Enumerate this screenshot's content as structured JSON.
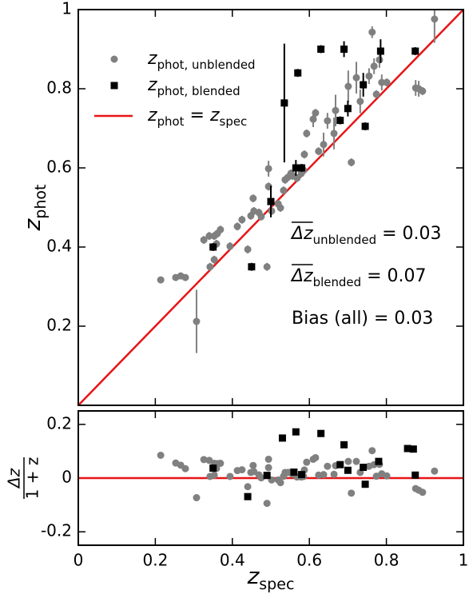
{
  "chart_data": [
    {
      "type": "scatter",
      "xlim": [
        0,
        1
      ],
      "ylim": [
        0,
        1
      ],
      "xticks": [
        0,
        0.2,
        0.4,
        0.6,
        0.8,
        1
      ],
      "yticks": [
        0.2,
        0.4,
        0.6,
        0.8,
        1
      ],
      "ylabel": [
        {
          "text": "z"
        },
        {
          "sub": "phot"
        }
      ],
      "legend_position": "upper left",
      "series": [
        {
          "name": [
            {
              "text": "z"
            },
            {
              "sub": "phot, unblended"
            }
          ],
          "color": "#808080",
          "marker": "circle",
          "x": [
            0.214,
            0.253,
            0.266,
            0.278,
            0.307,
            0.326,
            0.34,
            0.353,
            0.342,
            0.353,
            0.361,
            0.369,
            0.359,
            0.394,
            0.413,
            0.425,
            0.44,
            0.448,
            0.454,
            0.456,
            0.469,
            0.475,
            0.494,
            0.494,
            0.49,
            0.502,
            0.519,
            0.525,
            0.533,
            0.537,
            0.544,
            0.552,
            0.556,
            0.568,
            0.579,
            0.585,
            0.587,
            0.593,
            0.61,
            0.616,
            0.624,
            0.637,
            0.647,
            0.664,
            0.668,
            0.701,
            0.709,
            0.722,
            0.732,
            0.755,
            0.763,
            0.768,
            0.774,
            0.782,
            0.788,
            0.801,
            0.876,
            0.884,
            0.894,
            0.925
          ],
          "values": [
            0.317,
            0.323,
            0.327,
            0.323,
            0.212,
            0.418,
            0.428,
            0.428,
            0.35,
            0.368,
            0.434,
            0.444,
            0.408,
            0.402,
            0.452,
            0.469,
            0.394,
            0.479,
            0.523,
            0.491,
            0.487,
            0.477,
            0.598,
            0.553,
            0.35,
            0.491,
            0.509,
            0.499,
            0.543,
            0.57,
            0.576,
            0.586,
            0.58,
            0.574,
            0.586,
            0.594,
            0.634,
            0.687,
            0.723,
            0.739,
            0.642,
            0.659,
            0.719,
            0.687,
            0.745,
            0.806,
            0.614,
            0.828,
            0.768,
            0.832,
            0.943,
            0.857,
            0.786,
            0.873,
            0.816,
            0.816,
            0.802,
            0.8,
            0.794,
            0.976
          ],
          "yerr": [
            0.005,
            0.005,
            0.005,
            0.005,
            0.08,
            0.01,
            0.01,
            0.01,
            0.01,
            0.01,
            0.01,
            0.01,
            0.01,
            0.01,
            0.01,
            0.01,
            0.01,
            0.01,
            0.01,
            0.01,
            0.01,
            0.01,
            0.02,
            0.01,
            0.01,
            0.01,
            0.01,
            0.01,
            0.01,
            0.01,
            0.01,
            0.01,
            0.01,
            0.01,
            0.01,
            0.01,
            0.01,
            0.01,
            0.02,
            0.01,
            0.01,
            0.03,
            0.02,
            0.04,
            0.04,
            0.04,
            0.01,
            0.04,
            0.03,
            0.02,
            0.015,
            0.02,
            0.01,
            0.02,
            0.02,
            0.01,
            0.02,
            0.02,
            0.01,
            0.06
          ]
        },
        {
          "name": [
            {
              "text": "z"
            },
            {
              "sub": "phot, blended"
            }
          ],
          "color": "#000000",
          "marker": "square",
          "x": [
            0.35,
            0.45,
            0.5,
            0.535,
            0.57,
            0.565,
            0.58,
            0.63,
            0.68,
            0.69,
            0.7,
            0.74,
            0.745,
            0.785,
            0.875
          ],
          "values": [
            0.4,
            0.35,
            0.515,
            0.764,
            0.84,
            0.6,
            0.6,
            0.9,
            0.72,
            0.9,
            0.75,
            0.81,
            0.705,
            0.895,
            0.895
          ],
          "yerr": [
            0.01,
            0.01,
            0.04,
            0.15,
            0.01,
            0.02,
            0.01,
            0.01,
            0.01,
            0.02,
            0.02,
            0.03,
            0.01,
            0.03,
            0.01
          ]
        }
      ],
      "reference_line": {
        "name": [
          {
            "text": "z"
          },
          {
            "sub": "phot"
          },
          {
            "text": " = "
          },
          {
            "text": "z"
          },
          {
            "sub": "spec"
          }
        ],
        "color": "#e81416",
        "x": [
          0,
          1
        ],
        "values": [
          0,
          1
        ]
      },
      "annotations": [
        [
          {
            "text": "Δz"
          },
          {
            "sub": "unblended"
          },
          {
            "text": " = 0.03"
          }
        ],
        [
          {
            "text": "Δz"
          },
          {
            "sub": "blended"
          },
          {
            "text": " = 0.07"
          }
        ],
        [
          {
            "text": "Bias (all) = 0.03"
          }
        ]
      ]
    },
    {
      "type": "scatter",
      "xlim": [
        0,
        1
      ],
      "ylim": [
        -0.25,
        0.25
      ],
      "xticks": [
        0,
        0.2,
        0.4,
        0.6,
        0.8,
        1
      ],
      "yticks": [
        -0.2,
        0,
        0.2
      ],
      "xlabel": [
        {
          "text": "z"
        },
        {
          "sub": "spec"
        }
      ],
      "ylabel": {
        "numerator": "Δz",
        "denominator": "1 + z"
      },
      "series": [
        {
          "color": "#808080",
          "marker": "circle",
          "x": [
            0.214,
            0.253,
            0.266,
            0.278,
            0.307,
            0.326,
            0.34,
            0.353,
            0.342,
            0.353,
            0.361,
            0.369,
            0.359,
            0.394,
            0.413,
            0.425,
            0.44,
            0.448,
            0.454,
            0.456,
            0.469,
            0.475,
            0.494,
            0.494,
            0.49,
            0.502,
            0.519,
            0.525,
            0.533,
            0.537,
            0.544,
            0.552,
            0.556,
            0.568,
            0.579,
            0.585,
            0.587,
            0.593,
            0.61,
            0.616,
            0.624,
            0.637,
            0.647,
            0.664,
            0.668,
            0.701,
            0.709,
            0.722,
            0.732,
            0.755,
            0.763,
            0.768,
            0.774,
            0.782,
            0.788,
            0.801,
            0.876,
            0.884,
            0.894,
            0.925
          ],
          "values": [
            0.085,
            0.056,
            0.048,
            0.035,
            -0.073,
            0.069,
            0.066,
            0.055,
            0.006,
            0.011,
            0.054,
            0.055,
            0.036,
            0.006,
            0.028,
            0.031,
            -0.032,
            0.021,
            0.047,
            0.024,
            0.012,
            0.001,
            0.07,
            0.039,
            -0.094,
            -0.007,
            -0.007,
            -0.017,
            0.007,
            0.021,
            0.021,
            0.022,
            0.015,
            0.004,
            0.004,
            0.006,
            0.03,
            0.059,
            0.07,
            0.076,
            0.011,
            0.013,
            0.044,
            0.014,
            0.046,
            0.062,
            -0.056,
            0.062,
            0.021,
            0.044,
            0.102,
            0.05,
            0.007,
            0.051,
            0.016,
            0.008,
            -0.039,
            -0.045,
            -0.053,
            0.026
          ]
        },
        {
          "color": "#000000",
          "marker": "square",
          "x": [
            0.35,
            0.44,
            0.49,
            0.53,
            0.565,
            0.56,
            0.58,
            0.63,
            0.68,
            0.69,
            0.7,
            0.74,
            0.745,
            0.78,
            0.855,
            0.87,
            0.875
          ],
          "values": [
            0.037,
            -0.069,
            0.01,
            0.149,
            0.172,
            0.022,
            0.013,
            0.166,
            0.05,
            0.124,
            0.029,
            0.04,
            -0.023,
            0.062,
            0.11,
            0.108,
            0.011
          ]
        }
      ],
      "reference_line": {
        "color": "#e81416",
        "value": 0
      }
    }
  ]
}
